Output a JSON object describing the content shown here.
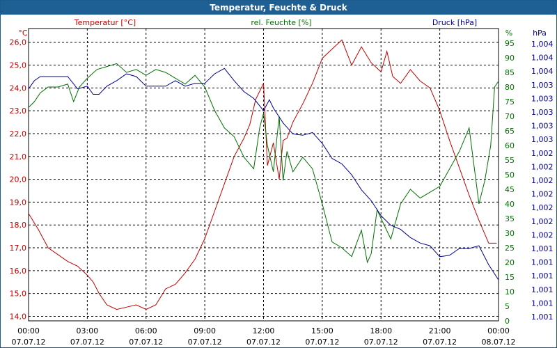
{
  "window": {
    "title": "Temperatur, Feuchte & Druck"
  },
  "colors": {
    "temperature": "#c00000",
    "humidity": "#007000",
    "pressure": "#000090",
    "grid": "#000000",
    "title_bg": "#1e5f94"
  },
  "chart_data": {
    "type": "line",
    "title": "Temperatur, Feuchte & Druck",
    "x_range_hours": [
      0,
      24
    ],
    "x_ticks": [
      {
        "time": "00:00",
        "date": "07.07.12"
      },
      {
        "time": "03:00",
        "date": "07.07.12"
      },
      {
        "time": "06:00",
        "date": "07.07.12"
      },
      {
        "time": "09:00",
        "date": "07.07.12"
      },
      {
        "time": "12:00",
        "date": "07.07.12"
      },
      {
        "time": "15:00",
        "date": "07.07.12"
      },
      {
        "time": "18:00",
        "date": "07.07.12"
      },
      {
        "time": "21:00",
        "date": "07.07.12"
      },
      {
        "time": "00:00",
        "date": "08.07.12"
      }
    ],
    "axes": {
      "left": {
        "unit": "°C",
        "min": 13.8,
        "max": 26.6,
        "ticks": [
          "14,0",
          "15,0",
          "16,0",
          "17,0",
          "18,0",
          "19,0",
          "20,0",
          "21,0",
          "22,0",
          "23,0",
          "24,0",
          "25,0",
          "26,0"
        ]
      },
      "middle": {
        "unit": "%",
        "min": 0,
        "max": 100,
        "ticks": [
          "0",
          "5",
          "10",
          "15",
          "20",
          "25",
          "30",
          "35",
          "40",
          "45",
          "50",
          "55",
          "60",
          "65",
          "70",
          "75",
          "80",
          "85",
          "90",
          "95"
        ]
      },
      "right": {
        "unit": "hPa",
        "ticks": [
          "1,001",
          "1,001",
          "1,001",
          "1,001",
          "1,001",
          "1,001",
          "1,002",
          "1,002",
          "1,002",
          "1,002",
          "1,002",
          "1,002",
          "1,002",
          "1,003",
          "1,003",
          "1,003",
          "1,003",
          "1,003",
          "1,004",
          "1,004",
          "1,004"
        ]
      }
    },
    "series": [
      {
        "name": "Temperatur [°C]",
        "axis": "left",
        "x": [
          0,
          0.5,
          1,
          1.5,
          2,
          2.5,
          3,
          3.3,
          3.6,
          4,
          4.5,
          5,
          5.5,
          6,
          6.5,
          7,
          7.5,
          8,
          8.5,
          9,
          9.5,
          10,
          10.5,
          11,
          11.3,
          11.6,
          12,
          12.2,
          12.5,
          12.8,
          13,
          13.2,
          13.5,
          14,
          14.5,
          15,
          15.5,
          16,
          16.5,
          17,
          17.5,
          18,
          18.3,
          18.6,
          19,
          19.5,
          20,
          20.5,
          21,
          21.5,
          22,
          22.5,
          23,
          23.5,
          23.9
        ],
        "values": [
          18.5,
          17.8,
          17.0,
          16.7,
          16.4,
          16.2,
          15.8,
          15.5,
          15.0,
          14.5,
          14.3,
          14.4,
          14.5,
          14.3,
          14.5,
          15.2,
          15.4,
          15.9,
          16.5,
          17.4,
          18.6,
          19.8,
          21.0,
          21.8,
          22.4,
          23.5,
          24.2,
          20.6,
          21.6,
          20.0,
          21.7,
          21.8,
          22.5,
          23.3,
          24.2,
          25.3,
          25.7,
          26.1,
          25.0,
          25.8,
          25.1,
          24.7,
          25.6,
          24.5,
          24.2,
          24.8,
          24.3,
          24.0,
          23.0,
          21.7,
          20.5,
          19.3,
          18.2,
          17.2,
          17.2
        ]
      },
      {
        "name": "rel. Feuchte [%]",
        "axis": "middle",
        "x": [
          0,
          0.3,
          0.6,
          1,
          1.5,
          2,
          2.3,
          2.6,
          3,
          3.5,
          4,
          4.5,
          5,
          5.5,
          6,
          6.5,
          7,
          7.5,
          8,
          8.5,
          9,
          9.5,
          10,
          10.5,
          11,
          11.5,
          11.8,
          12,
          12.2,
          12.5,
          12.8,
          13,
          13.2,
          13.5,
          14,
          14.5,
          15,
          15.5,
          16,
          16.5,
          17,
          17.3,
          17.5,
          17.8,
          18,
          18.5,
          19,
          19.5,
          20,
          20.5,
          21,
          21.5,
          22,
          22.5,
          23,
          23.3,
          23.6,
          23.8,
          24
        ],
        "values": [
          73,
          75,
          78,
          80,
          80,
          81,
          75,
          80,
          83,
          86,
          87,
          88,
          85,
          86,
          84,
          86,
          85,
          83,
          81,
          84,
          80,
          72,
          66,
          63,
          56,
          52,
          66,
          71,
          60,
          51,
          70,
          48,
          58,
          51,
          56,
          52,
          40,
          27,
          25,
          22,
          31,
          20,
          23,
          38,
          35,
          28,
          40,
          45,
          42,
          44,
          46,
          52,
          58,
          66,
          40,
          48,
          60,
          80,
          82
        ]
      },
      {
        "name": "Druck [hPa]",
        "axis": "right",
        "x": [
          0,
          0.3,
          0.6,
          1,
          1.5,
          2,
          2.5,
          3,
          3.3,
          3.6,
          4,
          4.5,
          5,
          5.5,
          6,
          6.5,
          7,
          7.5,
          8,
          8.5,
          9,
          9.5,
          10,
          10.5,
          11,
          11.5,
          12,
          12.3,
          12.5,
          13,
          13.5,
          14,
          14.5,
          15,
          15.5,
          16,
          16.5,
          17,
          17.5,
          18,
          18.5,
          19,
          19.5,
          20,
          20.5,
          21,
          21.5,
          22,
          22.5,
          23,
          23.5,
          24
        ],
        "ranks": [
          16.7,
          17.3,
          17.6,
          17.6,
          17.6,
          17.6,
          16.7,
          16.9,
          16.3,
          16.3,
          16.9,
          17.3,
          17.8,
          17.6,
          16.9,
          16.9,
          16.9,
          17.3,
          16.9,
          17.1,
          17.1,
          17.8,
          18.2,
          17.3,
          16.5,
          16.0,
          15.1,
          15.9,
          15.3,
          14.2,
          13.4,
          13.3,
          13.5,
          12.7,
          11.6,
          11.2,
          10.4,
          9.3,
          8.5,
          7.4,
          6.7,
          6.4,
          5.8,
          5.4,
          5.2,
          4.4,
          4.5,
          5.0,
          5.0,
          5.2,
          3.8,
          2.7
        ]
      }
    ]
  },
  "legend": {
    "temperature": "Temperatur [°C]",
    "humidity": "rel. Feuchte [%]",
    "pressure": "Druck [hPa]"
  }
}
